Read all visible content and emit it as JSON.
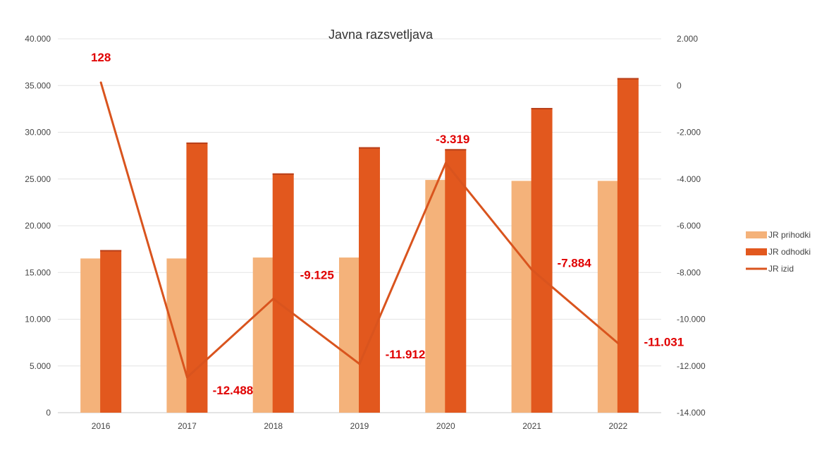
{
  "chart_data": {
    "type": "bar",
    "title": "Javna razsvetljava",
    "categories": [
      "2016",
      "2017",
      "2018",
      "2019",
      "2020",
      "2021",
      "2022"
    ],
    "series": [
      {
        "name": "JR prihodki",
        "kind": "bar",
        "axis": "left",
        "color": "#F4B27A",
        "values": [
          16500,
          16500,
          16600,
          16600,
          24900,
          24800,
          24800
        ]
      },
      {
        "name": "JR odhodki",
        "kind": "bar",
        "axis": "left",
        "color": "#E2581E",
        "values": [
          17400,
          28900,
          25600,
          28400,
          28200,
          32600,
          35800
        ]
      },
      {
        "name": "JR izid",
        "kind": "line",
        "axis": "right",
        "color": "#D9541E",
        "values": [
          128,
          -12488,
          -9125,
          -11912,
          -3319,
          -7884,
          -11031
        ],
        "labels": [
          "128",
          "-12.488",
          "-9.125",
          "-11.912",
          "-3.319",
          "-7.884",
          "-11.031"
        ],
        "label_color": "#E00000"
      }
    ],
    "y_left": {
      "min": 0,
      "max": 40000,
      "step": 5000,
      "tick_labels": [
        "0",
        "5.000",
        "10.000",
        "15.000",
        "20.000",
        "25.000",
        "30.000",
        "35.000",
        "40.000"
      ]
    },
    "y_right": {
      "min": -14000,
      "max": 2000,
      "step": 2000,
      "tick_labels": [
        "-14.000",
        "-12.000",
        "-10.000",
        "-8.000",
        "-6.000",
        "-4.000",
        "-2.000",
        "0",
        "2.000"
      ]
    },
    "grid": true,
    "legend_position": "right"
  }
}
